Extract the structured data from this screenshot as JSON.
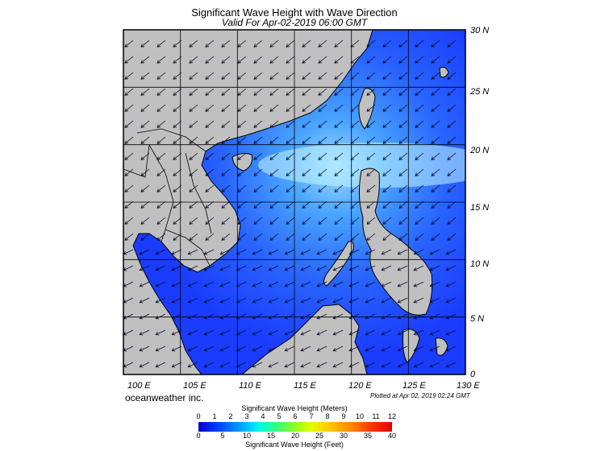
{
  "title": "Significant Wave Height with Wave Direction",
  "subtitle": "Valid For Apr-02-2019 06:00 GMT",
  "lat_labels": [
    "30 N",
    "25 N",
    "20 N",
    "15 N",
    "10 N",
    "5 N",
    "0"
  ],
  "lon_labels": [
    "100 E",
    "105 E",
    "110 E",
    "115 E",
    "120 E",
    "125 E",
    "130 E"
  ],
  "brand": "oceanweather inc.",
  "plotted": "Plotted at Apr 02, 2019 02:24 GMT",
  "colorbar": {
    "title_meters": "Significant Wave Height (Meters)",
    "title_feet": "Significant Wave Height (Feet)",
    "ticks_meters": [
      "0",
      "1",
      "2",
      "3",
      "4",
      "5",
      "6",
      "7",
      "8",
      "9",
      "10",
      "11",
      "12"
    ],
    "ticks_feet": [
      "0",
      "5",
      "10",
      "15",
      "20",
      "25",
      "30",
      "35",
      "40"
    ]
  },
  "colors": {
    "land": "#c0c0c0",
    "sea_low": "#1a3cff",
    "sea_mid": "#2a7bff",
    "sea_high": "#7fd6ff"
  },
  "map": {
    "lon_range": [
      100,
      130
    ],
    "lat_range": [
      0,
      30
    ],
    "arrow_direction": "toward-southwest"
  }
}
